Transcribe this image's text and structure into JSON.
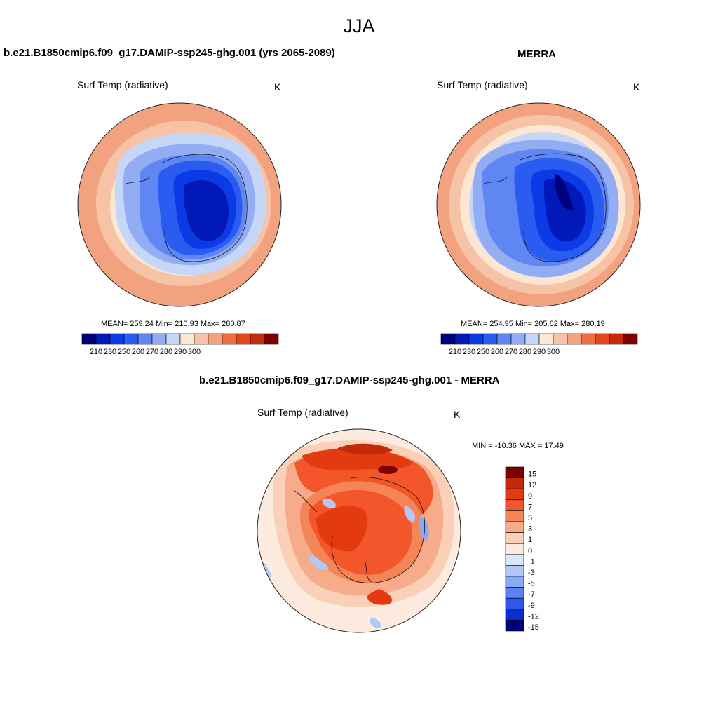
{
  "page_title": "JJA",
  "panels": [
    {
      "title": "b.e21.B1850cmip6.f09_g17.DAMIP-ssp245-ghg.001 (yrs 2065-2089)",
      "left_label": "Surf Temp (radiative)",
      "right_label": "K",
      "stats": "MEAN= 259.24  Min= 210.93  Max= 280.87",
      "colorbar_ticks": [
        "210",
        "230",
        "250",
        "260",
        "270",
        "280",
        "290",
        "300"
      ]
    },
    {
      "title": "MERRA",
      "left_label": "Surf Temp (radiative)",
      "right_label": "K",
      "stats": "MEAN= 254.95  Min= 205.62  Max= 280.19",
      "colorbar_ticks": [
        "210",
        "230",
        "250",
        "260",
        "270",
        "280",
        "290",
        "300"
      ]
    },
    {
      "title": "b.e21.B1850cmip6.f09_g17.DAMIP-ssp245-ghg.001 - MERRA",
      "left_label": "Surf Temp (radiative)",
      "right_label": "K",
      "stats": "MIN = -10.36 MAX =  17.49",
      "colorbar_ticks": [
        "15",
        "12",
        "9",
        "7",
        "5",
        "3",
        "1",
        "0",
        "-1",
        "-3",
        "-5",
        "-7",
        "-9",
        "-12",
        "-15"
      ]
    }
  ],
  "colors": {
    "abs_scale": [
      "#00007f",
      "#0019b8",
      "#0b3ae6",
      "#2a5cf2",
      "#5f86f3",
      "#93adf5",
      "#c5d6f7",
      "#fbe7d4",
      "#f6c3a6",
      "#f3a27f",
      "#f06c43",
      "#e4461c",
      "#c52a0c",
      "#7f0000"
    ],
    "diff_scale": [
      "#7f0000",
      "#c12a0a",
      "#e33a10",
      "#f2562a",
      "#f48557",
      "#f6ab8a",
      "#fad0b8",
      "#fdebdf",
      "#d9e6fb",
      "#b3c8f7",
      "#8aaaf5",
      "#5a82f2",
      "#2e58ec",
      "#0b2ccf",
      "#00007f"
    ]
  }
}
